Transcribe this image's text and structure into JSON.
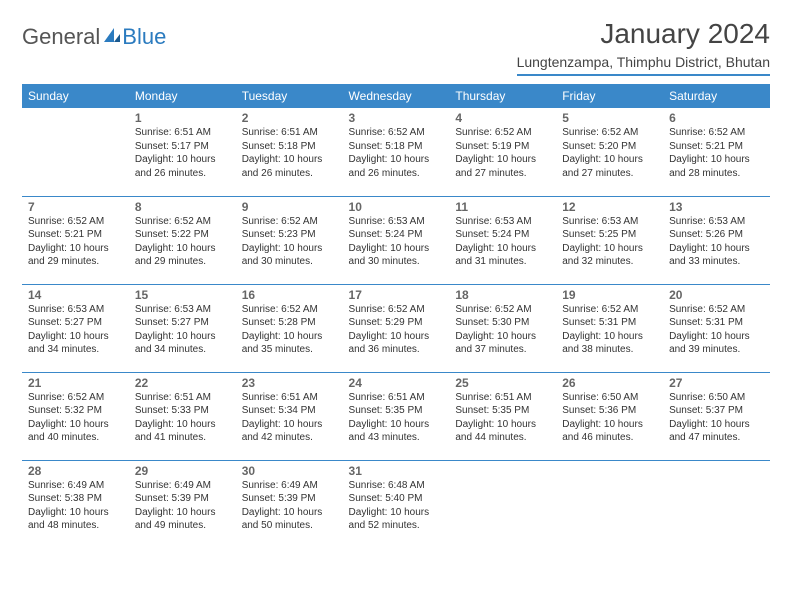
{
  "brand": {
    "part1": "General",
    "part2": "Blue"
  },
  "title": "January 2024",
  "location": "Lungtenzampa, Thimphu District, Bhutan",
  "colors": {
    "header_blue": "#3a88c9",
    "text": "#333333",
    "daynum": "#666666",
    "background": "#ffffff"
  },
  "day_headers": [
    "Sunday",
    "Monday",
    "Tuesday",
    "Wednesday",
    "Thursday",
    "Friday",
    "Saturday"
  ],
  "weeks": [
    [
      null,
      {
        "n": "1",
        "sr": "Sunrise: 6:51 AM",
        "ss": "Sunset: 5:17 PM",
        "dl": "Daylight: 10 hours and 26 minutes."
      },
      {
        "n": "2",
        "sr": "Sunrise: 6:51 AM",
        "ss": "Sunset: 5:18 PM",
        "dl": "Daylight: 10 hours and 26 minutes."
      },
      {
        "n": "3",
        "sr": "Sunrise: 6:52 AM",
        "ss": "Sunset: 5:18 PM",
        "dl": "Daylight: 10 hours and 26 minutes."
      },
      {
        "n": "4",
        "sr": "Sunrise: 6:52 AM",
        "ss": "Sunset: 5:19 PM",
        "dl": "Daylight: 10 hours and 27 minutes."
      },
      {
        "n": "5",
        "sr": "Sunrise: 6:52 AM",
        "ss": "Sunset: 5:20 PM",
        "dl": "Daylight: 10 hours and 27 minutes."
      },
      {
        "n": "6",
        "sr": "Sunrise: 6:52 AM",
        "ss": "Sunset: 5:21 PM",
        "dl": "Daylight: 10 hours and 28 minutes."
      }
    ],
    [
      {
        "n": "7",
        "sr": "Sunrise: 6:52 AM",
        "ss": "Sunset: 5:21 PM",
        "dl": "Daylight: 10 hours and 29 minutes."
      },
      {
        "n": "8",
        "sr": "Sunrise: 6:52 AM",
        "ss": "Sunset: 5:22 PM",
        "dl": "Daylight: 10 hours and 29 minutes."
      },
      {
        "n": "9",
        "sr": "Sunrise: 6:52 AM",
        "ss": "Sunset: 5:23 PM",
        "dl": "Daylight: 10 hours and 30 minutes."
      },
      {
        "n": "10",
        "sr": "Sunrise: 6:53 AM",
        "ss": "Sunset: 5:24 PM",
        "dl": "Daylight: 10 hours and 30 minutes."
      },
      {
        "n": "11",
        "sr": "Sunrise: 6:53 AM",
        "ss": "Sunset: 5:24 PM",
        "dl": "Daylight: 10 hours and 31 minutes."
      },
      {
        "n": "12",
        "sr": "Sunrise: 6:53 AM",
        "ss": "Sunset: 5:25 PM",
        "dl": "Daylight: 10 hours and 32 minutes."
      },
      {
        "n": "13",
        "sr": "Sunrise: 6:53 AM",
        "ss": "Sunset: 5:26 PM",
        "dl": "Daylight: 10 hours and 33 minutes."
      }
    ],
    [
      {
        "n": "14",
        "sr": "Sunrise: 6:53 AM",
        "ss": "Sunset: 5:27 PM",
        "dl": "Daylight: 10 hours and 34 minutes."
      },
      {
        "n": "15",
        "sr": "Sunrise: 6:53 AM",
        "ss": "Sunset: 5:27 PM",
        "dl": "Daylight: 10 hours and 34 minutes."
      },
      {
        "n": "16",
        "sr": "Sunrise: 6:52 AM",
        "ss": "Sunset: 5:28 PM",
        "dl": "Daylight: 10 hours and 35 minutes."
      },
      {
        "n": "17",
        "sr": "Sunrise: 6:52 AM",
        "ss": "Sunset: 5:29 PM",
        "dl": "Daylight: 10 hours and 36 minutes."
      },
      {
        "n": "18",
        "sr": "Sunrise: 6:52 AM",
        "ss": "Sunset: 5:30 PM",
        "dl": "Daylight: 10 hours and 37 minutes."
      },
      {
        "n": "19",
        "sr": "Sunrise: 6:52 AM",
        "ss": "Sunset: 5:31 PM",
        "dl": "Daylight: 10 hours and 38 minutes."
      },
      {
        "n": "20",
        "sr": "Sunrise: 6:52 AM",
        "ss": "Sunset: 5:31 PM",
        "dl": "Daylight: 10 hours and 39 minutes."
      }
    ],
    [
      {
        "n": "21",
        "sr": "Sunrise: 6:52 AM",
        "ss": "Sunset: 5:32 PM",
        "dl": "Daylight: 10 hours and 40 minutes."
      },
      {
        "n": "22",
        "sr": "Sunrise: 6:51 AM",
        "ss": "Sunset: 5:33 PM",
        "dl": "Daylight: 10 hours and 41 minutes."
      },
      {
        "n": "23",
        "sr": "Sunrise: 6:51 AM",
        "ss": "Sunset: 5:34 PM",
        "dl": "Daylight: 10 hours and 42 minutes."
      },
      {
        "n": "24",
        "sr": "Sunrise: 6:51 AM",
        "ss": "Sunset: 5:35 PM",
        "dl": "Daylight: 10 hours and 43 minutes."
      },
      {
        "n": "25",
        "sr": "Sunrise: 6:51 AM",
        "ss": "Sunset: 5:35 PM",
        "dl": "Daylight: 10 hours and 44 minutes."
      },
      {
        "n": "26",
        "sr": "Sunrise: 6:50 AM",
        "ss": "Sunset: 5:36 PM",
        "dl": "Daylight: 10 hours and 46 minutes."
      },
      {
        "n": "27",
        "sr": "Sunrise: 6:50 AM",
        "ss": "Sunset: 5:37 PM",
        "dl": "Daylight: 10 hours and 47 minutes."
      }
    ],
    [
      {
        "n": "28",
        "sr": "Sunrise: 6:49 AM",
        "ss": "Sunset: 5:38 PM",
        "dl": "Daylight: 10 hours and 48 minutes."
      },
      {
        "n": "29",
        "sr": "Sunrise: 6:49 AM",
        "ss": "Sunset: 5:39 PM",
        "dl": "Daylight: 10 hours and 49 minutes."
      },
      {
        "n": "30",
        "sr": "Sunrise: 6:49 AM",
        "ss": "Sunset: 5:39 PM",
        "dl": "Daylight: 10 hours and 50 minutes."
      },
      {
        "n": "31",
        "sr": "Sunrise: 6:48 AM",
        "ss": "Sunset: 5:40 PM",
        "dl": "Daylight: 10 hours and 52 minutes."
      },
      null,
      null,
      null
    ]
  ]
}
